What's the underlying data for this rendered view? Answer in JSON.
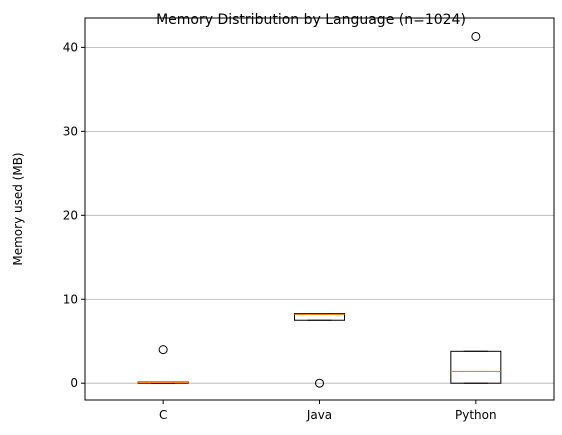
{
  "chart_data": {
    "type": "box",
    "title": "Memory Distribution by Language (n=1024)",
    "xlabel": "",
    "ylabel": "Memory used (MB)",
    "ylim": [
      -2.0,
      43.5
    ],
    "yticks": [
      0,
      10,
      20,
      30,
      40
    ],
    "grid": {
      "y": true,
      "x": false
    },
    "categories": [
      "C",
      "Java",
      "Python"
    ],
    "boxes": [
      {
        "category": "C",
        "whisker_low": 0.0,
        "q1": 0.0,
        "median": 0.1,
        "q3": 0.15,
        "whisker_high": 0.15,
        "outliers": [
          4.0
        ]
      },
      {
        "category": "Java",
        "whisker_low": 7.5,
        "q1": 7.5,
        "median": 8.2,
        "q3": 8.3,
        "whisker_high": 8.3,
        "outliers": [
          0.0
        ]
      },
      {
        "category": "Python",
        "whisker_low": 0.0,
        "q1": 0.0,
        "median": 1.4,
        "q3": 3.8,
        "whisker_high": 3.8,
        "outliers": [
          41.3
        ]
      }
    ],
    "colors": {
      "box": "#000000",
      "median": "#ff7f0e",
      "grid": "#b0b0b0"
    }
  }
}
